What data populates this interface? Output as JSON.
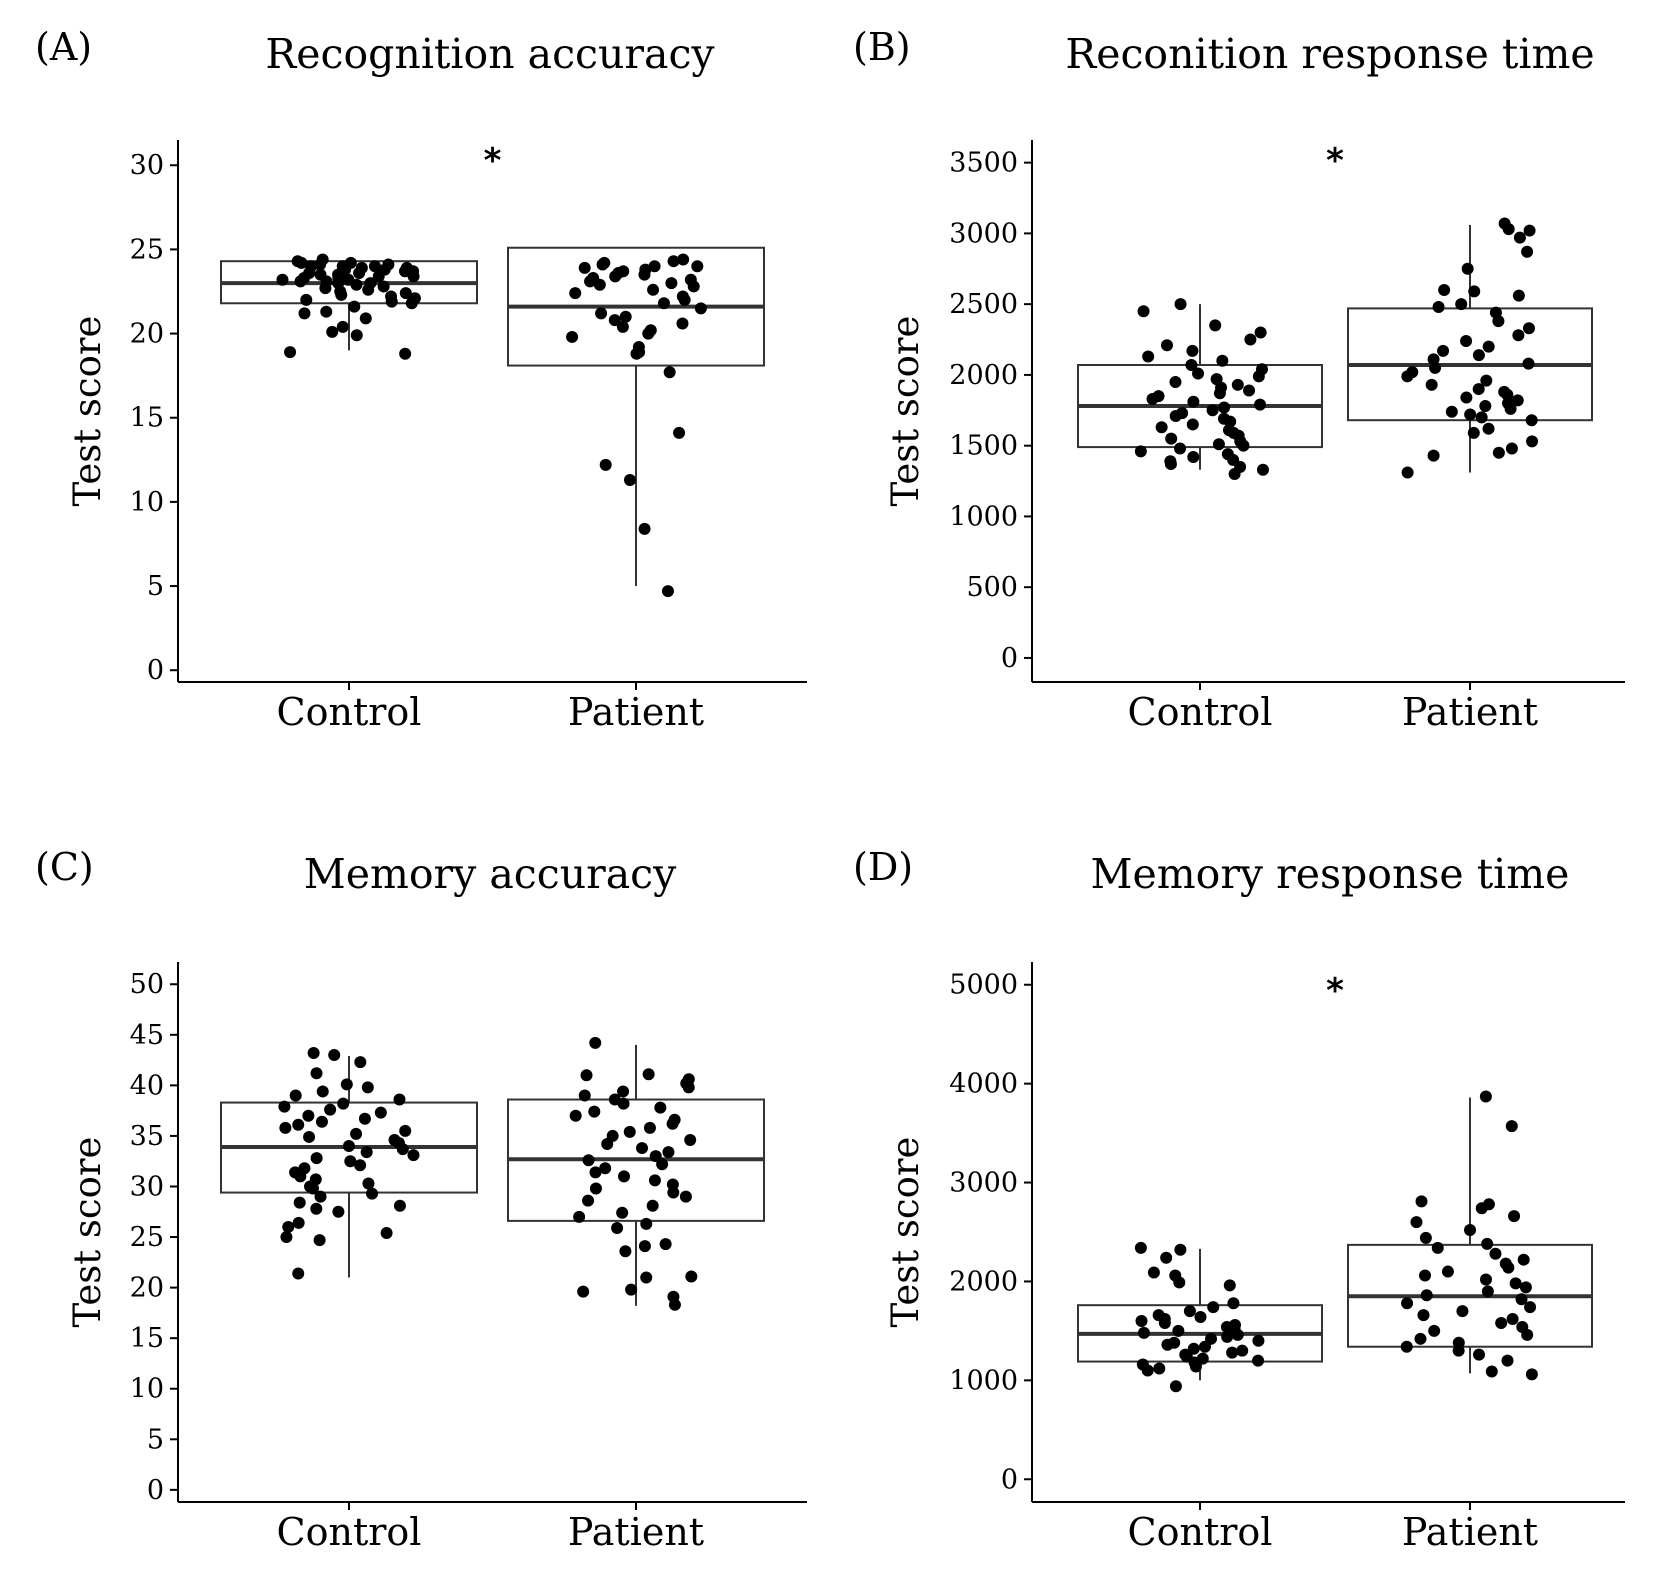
{
  "chart_data": [
    {
      "panel": "(A)",
      "title": "Recognition accuracy",
      "type": "box",
      "ylabel": "Test score",
      "categories": [
        "Control",
        "Patient"
      ],
      "yticks": [
        "0",
        "5",
        "10",
        "15",
        "20",
        "25",
        "30"
      ],
      "ylim": [
        -0.7,
        31.5
      ],
      "significance": "*",
      "boxes": [
        {
          "name": "Control",
          "q1": 21.8,
          "median": 23.0,
          "q3": 24.3,
          "whisker_low": 19.0,
          "whisker_high": 24.5
        },
        {
          "name": "Patient",
          "q1": 18.1,
          "median": 21.6,
          "q3": 25.1,
          "whisker_low": 5.0,
          "whisker_high": 25.1
        }
      ],
      "points": [
        {
          "name": "Control",
          "values": [
            18.8,
            18.9,
            19.9,
            20.1,
            20.4,
            20.9,
            21.2,
            21.3,
            21.6,
            21.8,
            21.9,
            22.0,
            22.1,
            22.2,
            22.3,
            22.4,
            22.5,
            22.6,
            22.7,
            22.8,
            22.9,
            23.0,
            23.0,
            23.1,
            23.1,
            23.2,
            23.2,
            23.3,
            23.3,
            23.4,
            23.4,
            23.5,
            23.5,
            23.6,
            23.6,
            23.7,
            23.7,
            23.8,
            23.8,
            23.9,
            23.9,
            24.0,
            24.0,
            24.0,
            24.1,
            24.1,
            24.2,
            24.2,
            24.3,
            24.4
          ]
        },
        {
          "name": "Patient",
          "values": [
            4.7,
            8.4,
            11.3,
            12.2,
            14.1,
            17.7,
            18.8,
            18.9,
            19.2,
            19.8,
            20.0,
            20.2,
            20.4,
            20.6,
            20.8,
            21.0,
            21.2,
            21.5,
            21.8,
            22.0,
            22.2,
            22.4,
            22.6,
            22.8,
            22.9,
            23.0,
            23.1,
            23.2,
            23.3,
            23.4,
            23.5,
            23.6,
            23.7,
            23.8,
            23.9,
            24.0,
            24.0,
            24.1,
            24.2,
            24.3,
            24.4
          ]
        }
      ]
    },
    {
      "panel": "(B)",
      "title": "Reconition response time",
      "type": "box",
      "ylabel": "Test score",
      "categories": [
        "Control",
        "Patient"
      ],
      "yticks": [
        "0",
        "500",
        "1000",
        "1500",
        "2000",
        "2500",
        "3000",
        "3500"
      ],
      "ylim": [
        -170,
        3660
      ],
      "significance": "*",
      "boxes": [
        {
          "name": "Control",
          "q1": 1490,
          "median": 1780,
          "q3": 2070,
          "whisker_low": 1330,
          "whisker_high": 2500
        },
        {
          "name": "Patient",
          "q1": 1680,
          "median": 2070,
          "q3": 2470,
          "whisker_low": 1310,
          "whisker_high": 3060
        }
      ],
      "points": [
        {
          "name": "Control",
          "values": [
            1300,
            1330,
            1350,
            1370,
            1390,
            1400,
            1420,
            1440,
            1460,
            1480,
            1500,
            1510,
            1530,
            1550,
            1570,
            1590,
            1610,
            1630,
            1650,
            1670,
            1690,
            1710,
            1730,
            1750,
            1770,
            1790,
            1810,
            1830,
            1850,
            1870,
            1890,
            1910,
            1930,
            1950,
            1970,
            1990,
            2010,
            2040,
            2070,
            2100,
            2130,
            2170,
            2210,
            2250,
            2300,
            2350,
            2450,
            2500
          ]
        },
        {
          "name": "Patient",
          "values": [
            1310,
            1430,
            1450,
            1480,
            1530,
            1590,
            1620,
            1680,
            1700,
            1720,
            1740,
            1760,
            1780,
            1800,
            1820,
            1840,
            1860,
            1880,
            1900,
            1930,
            1960,
            1990,
            2020,
            2050,
            2080,
            2110,
            2140,
            2170,
            2200,
            2240,
            2280,
            2330,
            2380,
            2440,
            2480,
            2500,
            2560,
            2590,
            2600,
            2750,
            2870,
            2970,
            3020,
            3030,
            3070
          ]
        }
      ]
    },
    {
      "panel": "(C)",
      "title": "Memory accuracy",
      "type": "box",
      "ylabel": "Test score",
      "categories": [
        "Control",
        "Patient"
      ],
      "yticks": [
        "0",
        "5",
        "10",
        "15",
        "20",
        "25",
        "30",
        "35",
        "40",
        "45",
        "50"
      ],
      "ylim": [
        -1.2,
        52.2
      ],
      "significance": "",
      "boxes": [
        {
          "name": "Control",
          "q1": 29.4,
          "median": 33.9,
          "q3": 38.3,
          "whisker_low": 21.0,
          "whisker_high": 42.9
        },
        {
          "name": "Patient",
          "q1": 26.6,
          "median": 32.7,
          "q3": 38.6,
          "whisker_low": 18.2,
          "whisker_high": 44.0
        }
      ],
      "points": [
        {
          "name": "Control",
          "values": [
            21.4,
            24.7,
            25.0,
            25.4,
            26.0,
            26.4,
            27.5,
            27.8,
            28.1,
            28.4,
            29.0,
            29.3,
            29.8,
            30.0,
            30.3,
            30.7,
            31.0,
            31.4,
            31.8,
            32.1,
            32.5,
            32.8,
            33.1,
            33.4,
            33.7,
            34.0,
            34.3,
            34.6,
            34.9,
            35.2,
            35.5,
            35.8,
            36.1,
            36.4,
            36.7,
            37.0,
            37.3,
            37.6,
            37.9,
            38.2,
            38.6,
            39.0,
            39.4,
            39.8,
            40.1,
            41.2,
            42.3,
            43.0,
            43.2
          ]
        },
        {
          "name": "Patient",
          "values": [
            18.3,
            19.1,
            19.6,
            19.8,
            21.0,
            21.1,
            23.6,
            24.1,
            24.3,
            25.9,
            26.3,
            27.0,
            27.4,
            28.1,
            28.6,
            29.0,
            29.4,
            29.8,
            30.2,
            30.6,
            31.0,
            31.4,
            31.8,
            32.2,
            32.6,
            33.0,
            33.4,
            33.8,
            34.2,
            34.6,
            35.0,
            35.4,
            35.8,
            36.2,
            36.6,
            37.0,
            37.4,
            37.8,
            38.2,
            38.6,
            39.0,
            39.4,
            39.8,
            40.2,
            40.6,
            41.0,
            41.1,
            44.2
          ]
        }
      ]
    },
    {
      "panel": "(D)",
      "title": "Memory response time",
      "type": "box",
      "ylabel": "Test score",
      "categories": [
        "Control",
        "Patient"
      ],
      "yticks": [
        "0",
        "1000",
        "2000",
        "3000",
        "4000",
        "5000"
      ],
      "ylim": [
        -230,
        5230
      ],
      "significance": "*",
      "boxes": [
        {
          "name": "Control",
          "q1": 1190,
          "median": 1470,
          "q3": 1760,
          "whisker_low": 1000,
          "whisker_high": 2330
        },
        {
          "name": "Patient",
          "q1": 1340,
          "median": 1850,
          "q3": 2370,
          "whisker_low": 1070,
          "whisker_high": 3860
        }
      ],
      "points": [
        {
          "name": "Control",
          "values": [
            940,
            1100,
            1120,
            1140,
            1160,
            1180,
            1200,
            1220,
            1240,
            1260,
            1280,
            1300,
            1320,
            1340,
            1360,
            1380,
            1400,
            1420,
            1440,
            1460,
            1480,
            1500,
            1520,
            1540,
            1560,
            1580,
            1600,
            1620,
            1640,
            1660,
            1700,
            1740,
            1780,
            1960,
            1990,
            2060,
            2090,
            2240,
            2320,
            2340
          ]
        },
        {
          "name": "Patient",
          "values": [
            1060,
            1090,
            1200,
            1260,
            1300,
            1340,
            1380,
            1420,
            1460,
            1500,
            1540,
            1580,
            1620,
            1660,
            1700,
            1740,
            1780,
            1820,
            1860,
            1900,
            1940,
            1980,
            2020,
            2060,
            2100,
            2140,
            2180,
            2220,
            2280,
            2340,
            2380,
            2440,
            2520,
            2600,
            2660,
            2740,
            2780,
            2810,
            3570,
            3870
          ]
        }
      ]
    }
  ]
}
